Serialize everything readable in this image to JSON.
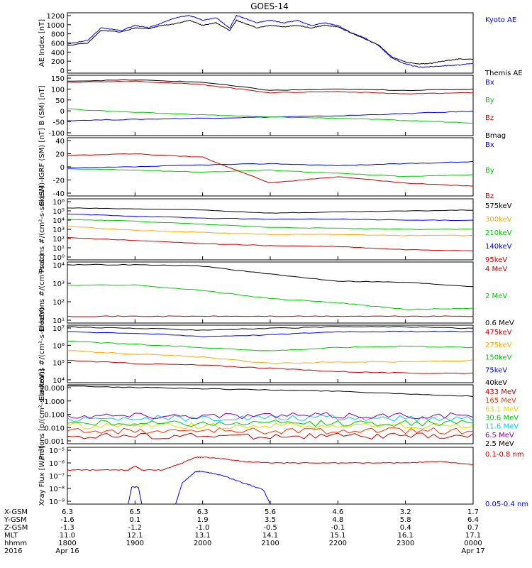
{
  "title": "GOES-14",
  "colors": {
    "black": "#000000",
    "blue": "#0000ff",
    "red": "#cc0000",
    "green": "#00cc00",
    "orange": "#ffaa00",
    "cyan": "#00ccff",
    "purple": "#8800aa",
    "yellow": "#dddd00"
  },
  "chart_data": [
    {
      "type": "line",
      "id": "ae",
      "ylabel": "AE Index [nT]",
      "yticks": [
        "1200",
        "1000",
        "800",
        "600",
        "400",
        "200",
        "0"
      ],
      "ylim": [
        0,
        1200
      ],
      "series": [
        {
          "name": "Kyoto AE",
          "color": "#0000ff",
          "x": [
            18.0,
            18.3,
            18.5,
            18.8,
            19.0,
            19.2,
            19.4,
            19.6,
            19.8,
            20.0,
            20.2,
            20.4,
            20.5,
            20.6,
            20.8,
            21.0,
            21.2,
            21.4,
            21.6,
            21.8,
            22.0,
            22.2,
            22.4,
            22.6,
            22.8,
            23.0,
            23.2,
            23.4,
            23.6,
            23.8,
            24.0
          ],
          "values": [
            580,
            650,
            900,
            850,
            950,
            900,
            1000,
            1100,
            1150,
            1050,
            1100,
            900,
            1150,
            1100,
            1000,
            1050,
            1000,
            1050,
            950,
            1000,
            950,
            800,
            700,
            550,
            300,
            180,
            120,
            130,
            150,
            160,
            200
          ]
        },
        {
          "name": "Themis AE",
          "color": "#000000",
          "x": [
            18.0,
            18.3,
            18.5,
            18.8,
            19.0,
            19.2,
            19.4,
            19.6,
            19.8,
            20.0,
            20.2,
            20.4,
            20.5,
            20.6,
            20.8,
            21.0,
            21.2,
            21.4,
            21.6,
            21.8,
            22.0,
            22.2,
            22.4,
            22.6,
            22.8,
            23.0,
            23.2,
            23.4,
            23.6,
            23.8,
            24.0
          ],
          "values": [
            550,
            600,
            850,
            820,
            900,
            880,
            950,
            980,
            1050,
            950,
            1000,
            850,
            1050,
            1000,
            900,
            950,
            920,
            950,
            900,
            950,
            920,
            800,
            680,
            560,
            320,
            220,
            180,
            200,
            250,
            280,
            280
          ]
        }
      ]
    },
    {
      "type": "line",
      "id": "bsm",
      "ylabel": "B (SM) [nT]",
      "yticks": [
        "150",
        "100",
        "50",
        "0",
        "-50",
        "-100"
      ],
      "ylim": [
        -110,
        150
      ],
      "series": [
        {
          "name": "Bx",
          "color": "#0000ff",
          "x": [
            18,
            19,
            20,
            21,
            22,
            23,
            24
          ],
          "values": [
            -45,
            -40,
            -35,
            -30,
            -25,
            -15,
            -5
          ]
        },
        {
          "name": "By",
          "color": "#00cc00",
          "x": [
            18,
            19,
            20,
            21,
            22,
            23,
            24
          ],
          "values": [
            5,
            -10,
            -20,
            -30,
            -35,
            -45,
            -55
          ]
        },
        {
          "name": "Bz",
          "color": "#cc0000",
          "x": [
            18,
            19,
            20,
            21,
            22,
            23,
            24
          ],
          "values": [
            120,
            125,
            110,
            75,
            80,
            70,
            75
          ]
        },
        {
          "name": "Bmag",
          "color": "#000000",
          "x": [
            18,
            19,
            20,
            21,
            22,
            23,
            24
          ],
          "values": [
            125,
            130,
            120,
            85,
            90,
            85,
            90
          ]
        }
      ]
    },
    {
      "type": "line",
      "id": "bigrf",
      "ylabel": "B (SM)-IGRF (SM) [nT]",
      "yticks": [
        "40",
        "20",
        "0",
        "-20",
        "-40"
      ],
      "ylim": [
        -45,
        45
      ],
      "series": [
        {
          "name": "Bx",
          "color": "#0000ff",
          "x": [
            18,
            19,
            20,
            21,
            22,
            23,
            24
          ],
          "values": [
            -2,
            0,
            3,
            5,
            2,
            5,
            8
          ]
        },
        {
          "name": "By",
          "color": "#00cc00",
          "x": [
            18,
            19,
            20,
            21,
            22,
            23,
            24
          ],
          "values": [
            -3,
            -5,
            -8,
            -5,
            -10,
            -15,
            -12
          ]
        },
        {
          "name": "Bz",
          "color": "#cc0000",
          "x": [
            18,
            19,
            20,
            21,
            22,
            23,
            24
          ],
          "values": [
            18,
            20,
            15,
            -25,
            -15,
            -25,
            -30
          ]
        }
      ]
    },
    {
      "type": "line",
      "id": "protons_kev",
      "log": true,
      "ylabel": "Protons #/(cm²-s-sr-keV)",
      "yticks": [
        "10⁶",
        "10⁵",
        "10⁴",
        "10³",
        "10²",
        "10¹",
        "10⁰"
      ],
      "ylim": [
        0,
        6
      ],
      "series": [
        {
          "name": "575keV",
          "color": "#000000",
          "x": [
            18,
            19,
            20,
            21,
            22,
            23,
            24
          ],
          "values": [
            5.1,
            5.0,
            4.9,
            4.6,
            4.7,
            4.8,
            4.9
          ]
        },
        {
          "name": "300keV",
          "color": "#ffaa00",
          "x": [
            18,
            19,
            20,
            21,
            22,
            23,
            24
          ],
          "values": [
            3.3,
            2.9,
            2.7,
            2.5,
            2.5,
            2.4,
            2.4
          ]
        },
        {
          "name": "210keV",
          "color": "#00cc00",
          "x": [
            18,
            19,
            20,
            21,
            22,
            23,
            24
          ],
          "values": [
            4.0,
            3.8,
            3.5,
            3.2,
            3.1,
            3.0,
            3.0
          ]
        },
        {
          "name": "140keV",
          "color": "#0000ff",
          "x": [
            18,
            19,
            20,
            21,
            22,
            23,
            24
          ],
          "values": [
            4.5,
            4.3,
            4.1,
            4.0,
            4.0,
            3.9,
            3.9
          ]
        },
        {
          "name": "95keV",
          "color": "#cc0000",
          "x": [
            18,
            19,
            20,
            21,
            22,
            23,
            24
          ],
          "values": [
            2.2,
            1.9,
            1.6,
            1.4,
            1.3,
            1.0,
            0.9
          ]
        }
      ]
    },
    {
      "type": "line",
      "id": "electrons_mev",
      "log": true,
      "ylabel": "Electrons #/(cm²-s-sr)",
      "yticks": [
        "10⁴",
        "10³",
        "10²",
        "10¹"
      ],
      "ylim": [
        0.5,
        5
      ],
      "series": [
        {
          "name": "4 MeV",
          "color": "#cc0000",
          "x": [
            18,
            19,
            20,
            21,
            22,
            23,
            24
          ],
          "values": [
            1.0,
            1.0,
            1.0,
            1.0,
            1.0,
            1.0,
            1.0
          ]
        },
        {
          "name": "2 MeV",
          "color": "#00cc00",
          "x": [
            18,
            19,
            20,
            21,
            22,
            23,
            24
          ],
          "values": [
            3.3,
            3.3,
            2.9,
            2.3,
            2.0,
            1.5,
            1.6
          ]
        },
        {
          "name": "0.6 MeV",
          "color": "#000000",
          "x": [
            18,
            19,
            20,
            21,
            22,
            23,
            24
          ],
          "values": [
            4.8,
            4.8,
            4.7,
            4.1,
            3.6,
            3.5,
            3.2
          ]
        }
      ]
    },
    {
      "type": "line",
      "id": "electrons_kev",
      "log": true,
      "ylabel": "Electrons #/(cm²-s-sr-keV)",
      "yticks": [
        "10⁷",
        "10⁶",
        "10⁵",
        "10⁴"
      ],
      "ylim": [
        3.4,
        7.0
      ],
      "series": [
        {
          "name": "475keV",
          "color": "#cc0000",
          "x": [
            18,
            19,
            20,
            21,
            22,
            23,
            24
          ],
          "values": [
            4.8,
            4.6,
            4.5,
            4.3,
            4.1,
            4.0,
            4.0
          ]
        },
        {
          "name": "275keV",
          "color": "#ffaa00",
          "x": [
            18,
            19,
            20,
            21,
            22,
            23,
            24
          ],
          "values": [
            5.4,
            5.2,
            5.0,
            4.6,
            4.7,
            4.7,
            4.8
          ]
        },
        {
          "name": "150keV",
          "color": "#00cc00",
          "x": [
            18,
            19,
            20,
            21,
            22,
            23,
            24
          ],
          "values": [
            6.0,
            5.8,
            5.6,
            5.4,
            5.6,
            5.7,
            5.6
          ]
        },
        {
          "name": "75keV",
          "color": "#0000ff",
          "x": [
            18,
            19,
            20,
            21,
            22,
            23,
            24
          ],
          "values": [
            6.6,
            6.5,
            6.3,
            6.4,
            6.6,
            6.6,
            6.6
          ]
        },
        {
          "name": "40keV",
          "color": "#000000",
          "x": [
            18,
            19,
            20,
            21,
            22,
            23,
            24
          ],
          "values": [
            6.9,
            6.8,
            6.7,
            6.8,
            6.9,
            6.9,
            6.8
          ]
        }
      ]
    },
    {
      "type": "line",
      "id": "protons_mev",
      "log": true,
      "ylabel": "Protons [p/(cm²-s-sr-keV)]",
      "yticks": [
        "10.000",
        "1.000",
        "0.100",
        "0.010",
        "0.001"
      ],
      "ylim": [
        -3.2,
        1.4
      ],
      "series": [
        {
          "name": "433 MeV",
          "color": "#cc0000",
          "x": [
            18,
            19,
            20,
            21,
            22,
            23,
            24
          ],
          "values": [
            -2.6,
            -2.6,
            -2.6,
            -2.6,
            -2.6,
            -2.6,
            -2.6
          ]
        },
        {
          "name": "165 MeV",
          "color": "#ff3300",
          "x": [
            18,
            19,
            20,
            21,
            22,
            23,
            24
          ],
          "values": [
            -2.2,
            -2.2,
            -2.2,
            -2.2,
            -2.2,
            -2.2,
            -2.2
          ]
        },
        {
          "name": "63.1 MeV",
          "color": "#dddd00",
          "x": [
            18,
            19,
            20,
            21,
            22,
            23,
            24
          ],
          "values": [
            -1.8,
            -1.8,
            -1.8,
            -1.8,
            -1.8,
            -1.8,
            -1.8
          ]
        },
        {
          "name": "30.6 MeV",
          "color": "#00cc00",
          "x": [
            18,
            19,
            20,
            21,
            22,
            23,
            24
          ],
          "values": [
            -1.6,
            -1.6,
            -1.6,
            -1.6,
            -1.6,
            -1.6,
            -1.6
          ]
        },
        {
          "name": "11.6 MeV",
          "color": "#00ccff",
          "x": [
            18,
            19,
            20,
            21,
            22,
            23,
            24
          ],
          "values": [
            -1.2,
            -1.2,
            -1.2,
            -1.2,
            -1.2,
            -1.2,
            -1.2
          ]
        },
        {
          "name": "6.5 MeV",
          "color": "#8800aa",
          "x": [
            18,
            19,
            20,
            21,
            22,
            23,
            24
          ],
          "values": [
            -1.0,
            -1.0,
            -1.0,
            -1.0,
            -1.0,
            -1.0,
            -1.0
          ]
        },
        {
          "name": "2.5 MeV",
          "color": "#000000",
          "x": [
            18,
            19,
            20,
            21,
            22,
            23,
            24
          ],
          "values": [
            1.3,
            1.2,
            1.1,
            1.0,
            0.9,
            0.7,
            0.5
          ]
        }
      ]
    },
    {
      "type": "line",
      "id": "xray",
      "log": true,
      "ylabel": "Xray Flux [W/m²]",
      "yticks": [
        "10⁻⁵",
        "10⁻⁶",
        "10⁻⁷",
        "10⁻⁸",
        "10⁻⁹"
      ],
      "ylim": [
        -9,
        -5
      ],
      "series": [
        {
          "name": "0.1-0.8 nm",
          "color": "#cc0000",
          "x": [
            18.0,
            18.5,
            18.9,
            19.0,
            19.1,
            19.4,
            19.7,
            19.9,
            20.0,
            20.3,
            20.6,
            21.0,
            21.5,
            22.0,
            22.5,
            23.0,
            23.5,
            24.0
          ],
          "values": [
            -6.6,
            -6.6,
            -6.6,
            -6.3,
            -6.6,
            -6.6,
            -6.1,
            -5.7,
            -5.7,
            -5.8,
            -6.0,
            -6.1,
            -6.1,
            -6.1,
            -6.1,
            -6.1,
            -6.0,
            -6.2
          ]
        },
        {
          "name": "0.05-0.4 nm",
          "color": "#0000ff",
          "x": [
            18.9,
            18.95,
            19.05,
            19.1,
            null,
            19.6,
            19.7,
            19.9,
            20.0,
            20.3,
            20.6,
            20.9,
            21.0
          ],
          "values": [
            -9.0,
            -7.8,
            -7.8,
            -9.0,
            null,
            -9.0,
            -7.5,
            -6.7,
            -6.7,
            -7.0,
            -7.5,
            -8.0,
            -9.0
          ]
        }
      ]
    }
  ],
  "xaxis": {
    "rows": [
      {
        "label": "X-GSM",
        "values": [
          "6.3",
          "6.5",
          "6.3",
          "5.6",
          "4.6",
          "3.2",
          "1.7"
        ]
      },
      {
        "label": "Y-GSM",
        "values": [
          "-1.6",
          "0.1",
          "1.9",
          "3.5",
          "4.8",
          "5.8",
          "6.4"
        ]
      },
      {
        "label": "Z-GSM",
        "values": [
          "-1.3",
          "-1.2",
          "-1.0",
          "-0.5",
          "-0.1",
          "0.4",
          "0.7"
        ]
      },
      {
        "label": "MLT",
        "values": [
          "11.0",
          "12.1",
          "13.1",
          "14.1",
          "15.1",
          "16.1",
          "17.1"
        ]
      },
      {
        "label": "hhmm",
        "values": [
          "1800",
          "1900",
          "2000",
          "2100",
          "2200",
          "2300",
          "0000"
        ]
      },
      {
        "label": "2016",
        "values": [
          "Apr 16",
          "",
          "",
          "",
          "",
          "",
          "Apr 17"
        ]
      }
    ]
  }
}
